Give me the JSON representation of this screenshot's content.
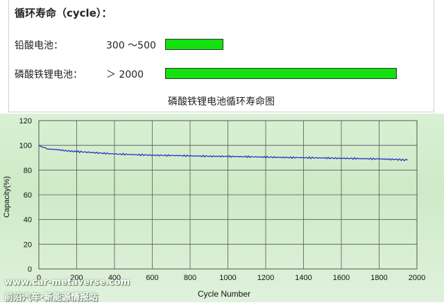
{
  "panel": {
    "heading": "循环寿命（cycle）：",
    "rows": [
      {
        "label": "铅酸电池：",
        "range": "300 ～500",
        "bar_value": 500
      },
      {
        "label": "磷酸铁锂电池：",
        "range": "＞ 2000",
        "bar_value": 2000
      }
    ],
    "caption": "磷酸铁锂电池循环寿命图"
  },
  "chart_data": {
    "type": "line",
    "title": "",
    "xlabel": "Cycle Number",
    "ylabel": "Capacity(%)",
    "xlim": [
      0,
      2000
    ],
    "ylim": [
      0,
      120
    ],
    "x_ticks": [
      0,
      200,
      400,
      600,
      800,
      1000,
      1200,
      1400,
      1600,
      1800,
      2000
    ],
    "y_ticks": [
      0,
      20,
      40,
      60,
      80,
      100,
      120
    ],
    "grid": true,
    "line_color": "#2830c8",
    "series": [
      {
        "x": [
          0,
          20,
          50,
          100,
          150,
          200,
          300,
          400,
          500,
          600,
          700,
          800,
          900,
          1000,
          1100,
          1200,
          1300,
          1400,
          1500,
          1600,
          1700,
          1800,
          1900,
          1950
        ],
        "values": [
          100,
          98.5,
          97,
          96.5,
          95.5,
          95,
          94,
          93,
          92.5,
          92,
          91.8,
          91.5,
          91.2,
          91,
          90.8,
          90.5,
          90.2,
          90,
          89.8,
          89.5,
          89.3,
          89,
          88.5,
          88
        ]
      }
    ]
  },
  "watermark": {
    "line1": "www.car-metaverse.com",
    "line2": "前沿汽车·新能源情报站"
  }
}
